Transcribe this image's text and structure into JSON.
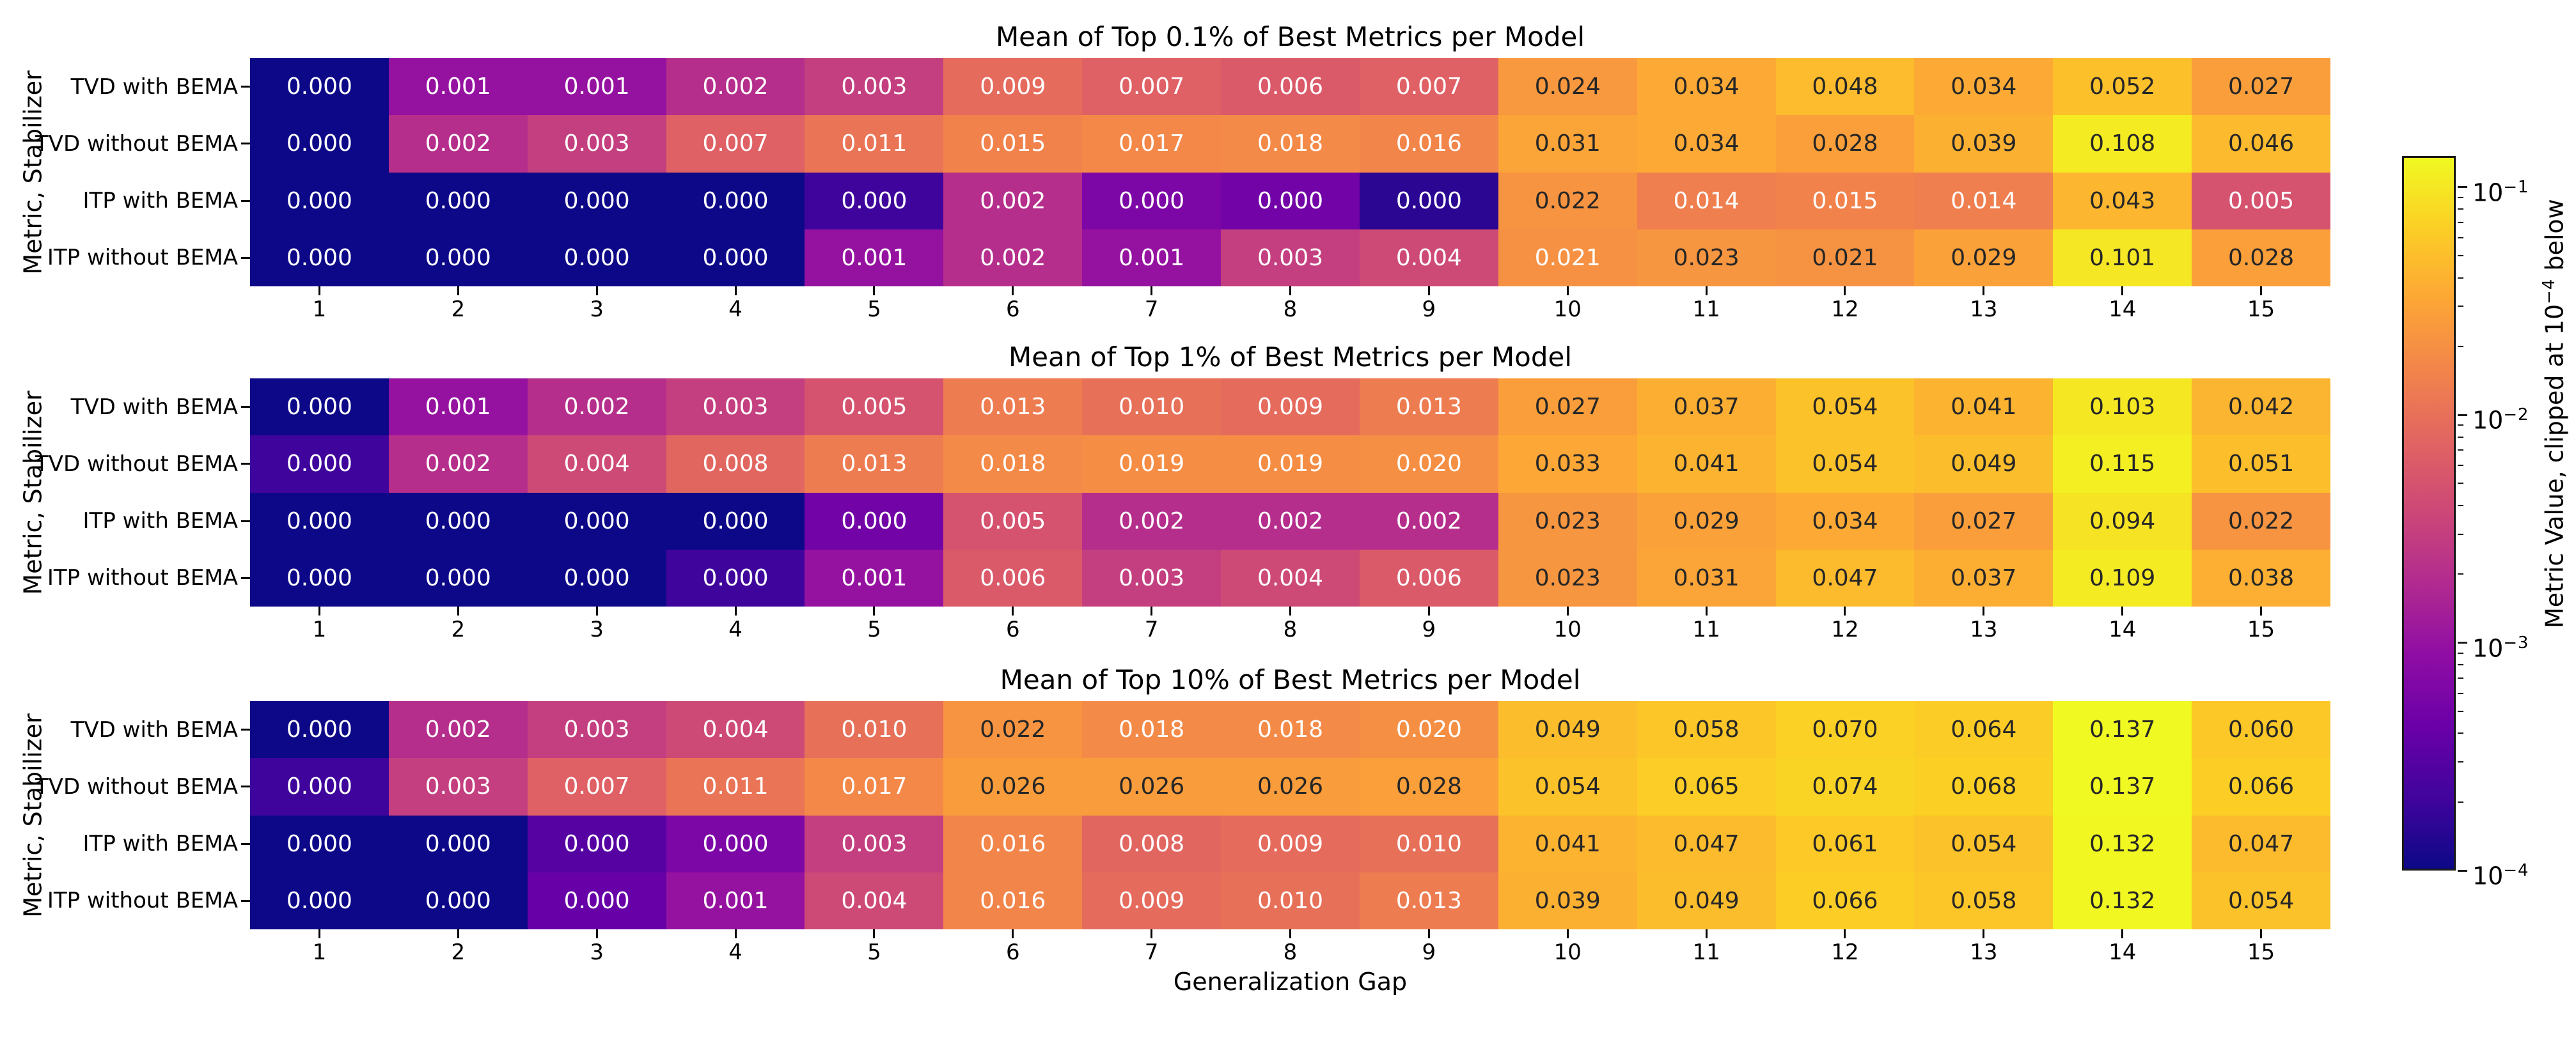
{
  "figure": {
    "xlabel": "Generalization Gap",
    "background": "#ffffff",
    "text_color": "#000000"
  },
  "rows": [
    "TVD with BEMA",
    "TVD without BEMA",
    "ITP with BEMA",
    "ITP without BEMA"
  ],
  "columns": [
    "1",
    "2",
    "3",
    "4",
    "5",
    "6",
    "7",
    "8",
    "9",
    "10",
    "11",
    "12",
    "13",
    "14",
    "15"
  ],
  "colorbar": {
    "label_pre": "Metric Value, clipped at 10",
    "label_exp": "−4",
    "label_post": " below",
    "ticks": [
      {
        "base": "10",
        "exp": "−1",
        "value": 0.1
      },
      {
        "base": "10",
        "exp": "−2",
        "value": 0.01
      },
      {
        "base": "10",
        "exp": "−3",
        "value": 0.001
      },
      {
        "base": "10",
        "exp": "−4",
        "value": 0.0001
      }
    ],
    "scale": "log",
    "vmin": 0.0001,
    "vmax": 0.137,
    "colormap": "plasma",
    "anchors": [
      "#0d0887",
      "#41049d",
      "#6a00a8",
      "#8f0da4",
      "#b12a90",
      "#cc4778",
      "#e16462",
      "#f2844b",
      "#fca636",
      "#fcce25",
      "#f0f921"
    ],
    "annot_dark_text": "#262626",
    "annot_light_text": "#ffffff"
  },
  "chart_data": [
    {
      "type": "heatmap",
      "title": "Mean of Top 0.1% of Best Metrics per Model",
      "ylabel": "Metric, Stabilizer",
      "rows": [
        "TVD with BEMA",
        "TVD without BEMA",
        "ITP with BEMA",
        "ITP without BEMA"
      ],
      "columns": [
        "1",
        "2",
        "3",
        "4",
        "5",
        "6",
        "7",
        "8",
        "9",
        "10",
        "11",
        "12",
        "13",
        "14",
        "15"
      ],
      "values": [
        [
          0.0,
          0.001,
          0.001,
          0.002,
          0.003,
          0.009,
          0.007,
          0.006,
          0.007,
          0.024,
          0.034,
          0.048,
          0.034,
          0.052,
          0.027
        ],
        [
          0.0,
          0.002,
          0.003,
          0.007,
          0.011,
          0.015,
          0.017,
          0.018,
          0.016,
          0.031,
          0.034,
          0.028,
          0.039,
          0.108,
          0.046
        ],
        [
          0.0,
          0.0,
          0.0,
          0.0,
          0.0,
          0.002,
          0.0,
          0.0,
          0.0,
          0.022,
          0.014,
          0.015,
          0.014,
          0.043,
          0.005
        ],
        [
          0.0,
          0.0,
          0.0,
          0.0,
          0.001,
          0.002,
          0.001,
          0.003,
          0.004,
          0.021,
          0.023,
          0.021,
          0.029,
          0.101,
          0.028
        ]
      ],
      "color_value_overrides": {
        "2,4": 0.0002,
        "2,6": 0.0006,
        "2,7": 0.0005,
        "2,8": 0.00015,
        "3,9": 0.0205,
        "3,11": 0.0215
      }
    },
    {
      "type": "heatmap",
      "title": "Mean of Top 1% of Best Metrics per Model",
      "ylabel": "Metric, Stabilizer",
      "rows": [
        "TVD with BEMA",
        "TVD without BEMA",
        "ITP with BEMA",
        "ITP without BEMA"
      ],
      "columns": [
        "1",
        "2",
        "3",
        "4",
        "5",
        "6",
        "7",
        "8",
        "9",
        "10",
        "11",
        "12",
        "13",
        "14",
        "15"
      ],
      "values": [
        [
          0.0,
          0.001,
          0.002,
          0.003,
          0.005,
          0.013,
          0.01,
          0.009,
          0.013,
          0.027,
          0.037,
          0.054,
          0.041,
          0.103,
          0.042
        ],
        [
          0.0,
          0.002,
          0.004,
          0.008,
          0.013,
          0.018,
          0.019,
          0.019,
          0.02,
          0.033,
          0.041,
          0.054,
          0.049,
          0.115,
          0.051
        ],
        [
          0.0,
          0.0,
          0.0,
          0.0,
          0.0,
          0.005,
          0.002,
          0.002,
          0.002,
          0.023,
          0.029,
          0.034,
          0.027,
          0.094,
          0.022
        ],
        [
          0.0,
          0.0,
          0.0,
          0.0,
          0.001,
          0.006,
          0.003,
          0.004,
          0.006,
          0.023,
          0.031,
          0.047,
          0.037,
          0.109,
          0.038
        ]
      ],
      "color_value_overrides": {
        "1,0": 0.0002,
        "2,4": 0.0005,
        "3,3": 0.0002
      }
    },
    {
      "type": "heatmap",
      "title": "Mean of Top 10% of Best Metrics per Model",
      "ylabel": "Metric, Stabilizer",
      "rows": [
        "TVD with BEMA",
        "TVD without BEMA",
        "ITP with BEMA",
        "ITP without BEMA"
      ],
      "columns": [
        "1",
        "2",
        "3",
        "4",
        "5",
        "6",
        "7",
        "8",
        "9",
        "10",
        "11",
        "12",
        "13",
        "14",
        "15"
      ],
      "values": [
        [
          0.0,
          0.002,
          0.003,
          0.004,
          0.01,
          0.022,
          0.018,
          0.018,
          0.02,
          0.049,
          0.058,
          0.07,
          0.064,
          0.137,
          0.06
        ],
        [
          0.0,
          0.003,
          0.007,
          0.011,
          0.017,
          0.026,
          0.026,
          0.026,
          0.028,
          0.054,
          0.065,
          0.074,
          0.068,
          0.137,
          0.066
        ],
        [
          0.0,
          0.0,
          0.0,
          0.0,
          0.003,
          0.016,
          0.008,
          0.009,
          0.01,
          0.041,
          0.047,
          0.061,
          0.054,
          0.132,
          0.047
        ],
        [
          0.0,
          0.0,
          0.0,
          0.001,
          0.004,
          0.016,
          0.009,
          0.01,
          0.013,
          0.039,
          0.049,
          0.066,
          0.058,
          0.132,
          0.054
        ]
      ],
      "color_value_overrides": {
        "1,0": 0.0002,
        "2,2": 0.0003,
        "2,3": 0.0006,
        "3,2": 0.0004
      }
    }
  ]
}
